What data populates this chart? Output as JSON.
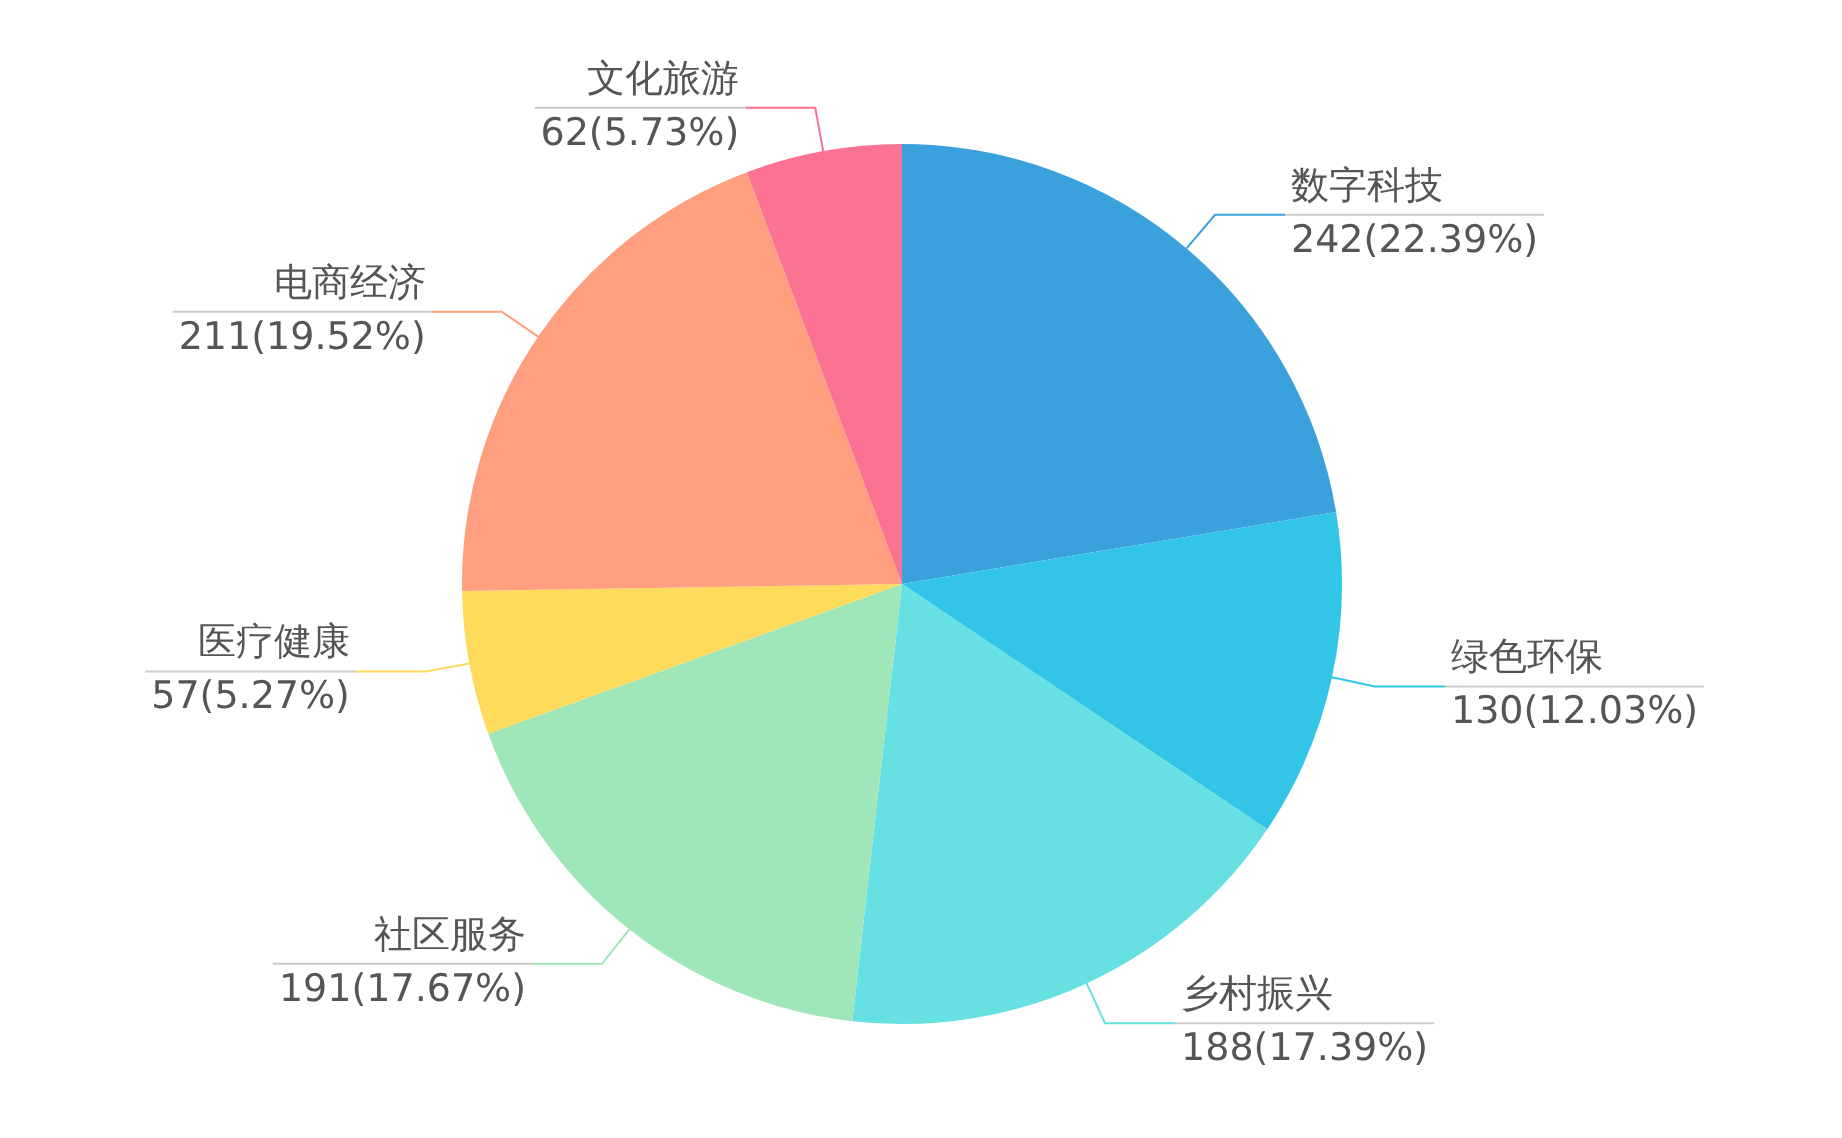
{
  "chart_data": {
    "type": "pie",
    "categories": [
      "数字科技",
      "绿色环保",
      "乡村振兴",
      "社区服务",
      "医疗健康",
      "电商经济",
      "文化旅游"
    ],
    "values": [
      242,
      130,
      188,
      191,
      57,
      211,
      62
    ],
    "colors": [
      "#3aa1dc",
      "#33c5e8",
      "#67e0e3",
      "#9fe6b8",
      "#ffdb5c",
      "#ff9f7f",
      "#fb7293"
    ],
    "value_labels": [
      "242(22.39%)",
      "130(12.03%)",
      "188(17.39%)",
      "191(17.67%)",
      "57(5.27%)",
      "211(19.52%)",
      "62(5.73%)"
    ],
    "legend": false
  }
}
